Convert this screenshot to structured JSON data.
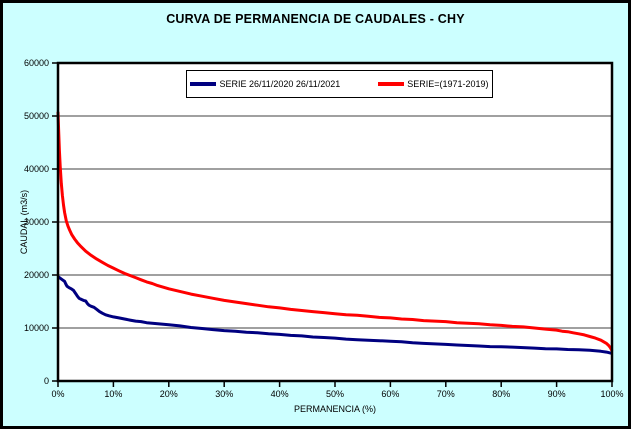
{
  "window": {
    "title": "CURVA DE PERMANENCIA DE CAUDALES - CHY"
  },
  "chart_data": {
    "type": "line",
    "title": "CURVA DE PERMANENCIA DE CAUDALES - CHY",
    "xlabel": "PERMANENCIA (%)",
    "ylabel": "CAUDAL (m3/s)",
    "xlim": [
      0,
      100
    ],
    "ylim": [
      0,
      60000
    ],
    "grid": "horizontal-only",
    "legend_position": "top-center-inside",
    "x_tick_values": [
      0,
      10,
      20,
      30,
      40,
      50,
      60,
      70,
      80,
      90,
      100
    ],
    "x_tick_labels": [
      "0%",
      "10%",
      "20%",
      "30%",
      "40%",
      "50%",
      "60%",
      "70%",
      "80%",
      "90%",
      "100%"
    ],
    "y_tick_values": [
      0,
      10000,
      20000,
      30000,
      40000,
      50000,
      60000
    ],
    "y_tick_labels": [
      "0",
      "10000",
      "20000",
      "30000",
      "40000",
      "50000",
      "60000"
    ],
    "colors": {
      "background": "#CCFFFF",
      "plot_background": "#FFFFFF",
      "gridline": "#808080",
      "axis": "#000000",
      "series_blue": "#000080",
      "series_red": "#FF0000"
    },
    "series": [
      {
        "id": "serie-26-11-2020-26-11-2021",
        "name": "SERIE 26/11/2020 26/11/2021",
        "color": "#000080",
        "points": [
          [
            0,
            19700
          ],
          [
            0.4,
            19400
          ],
          [
            0.8,
            19100
          ],
          [
            1.2,
            18800
          ],
          [
            1.4,
            18300
          ],
          [
            1.6,
            17900
          ],
          [
            2.0,
            17600
          ],
          [
            2.4,
            17400
          ],
          [
            2.8,
            17100
          ],
          [
            3.2,
            16500
          ],
          [
            3.5,
            16000
          ],
          [
            3.8,
            15600
          ],
          [
            4.2,
            15400
          ],
          [
            4.6,
            15200
          ],
          [
            5.0,
            15100
          ],
          [
            5.3,
            14600
          ],
          [
            5.6,
            14300
          ],
          [
            6.0,
            14100
          ],
          [
            6.5,
            13900
          ],
          [
            7.0,
            13500
          ],
          [
            7.5,
            13100
          ],
          [
            8.0,
            12800
          ],
          [
            8.6,
            12500
          ],
          [
            9.2,
            12300
          ],
          [
            10,
            12100
          ],
          [
            11,
            11900
          ],
          [
            12,
            11700
          ],
          [
            13,
            11500
          ],
          [
            14,
            11300
          ],
          [
            15,
            11200
          ],
          [
            16,
            11000
          ],
          [
            17,
            10900
          ],
          [
            18,
            10800
          ],
          [
            19,
            10700
          ],
          [
            20,
            10600
          ],
          [
            22,
            10400
          ],
          [
            24,
            10100
          ],
          [
            26,
            9900
          ],
          [
            28,
            9700
          ],
          [
            30,
            9500
          ],
          [
            32,
            9400
          ],
          [
            34,
            9200
          ],
          [
            36,
            9100
          ],
          [
            38,
            8900
          ],
          [
            40,
            8800
          ],
          [
            42,
            8600
          ],
          [
            44,
            8500
          ],
          [
            46,
            8300
          ],
          [
            48,
            8200
          ],
          [
            50,
            8100
          ],
          [
            52,
            7900
          ],
          [
            54,
            7800
          ],
          [
            56,
            7700
          ],
          [
            58,
            7600
          ],
          [
            60,
            7500
          ],
          [
            62,
            7400
          ],
          [
            64,
            7200
          ],
          [
            66,
            7100
          ],
          [
            68,
            7000
          ],
          [
            70,
            6900
          ],
          [
            72,
            6800
          ],
          [
            74,
            6700
          ],
          [
            76,
            6600
          ],
          [
            78,
            6500
          ],
          [
            80,
            6450
          ],
          [
            82,
            6400
          ],
          [
            84,
            6300
          ],
          [
            86,
            6200
          ],
          [
            88,
            6100
          ],
          [
            90,
            6050
          ],
          [
            92,
            5950
          ],
          [
            94,
            5900
          ],
          [
            96,
            5800
          ],
          [
            97,
            5700
          ],
          [
            98,
            5600
          ],
          [
            99,
            5450
          ],
          [
            100,
            5200
          ]
        ]
      },
      {
        "id": "serie-1971-2019",
        "name": "SERIE=(1971-2019)",
        "color": "#FF0000",
        "points": [
          [
            0,
            50800
          ],
          [
            0.1,
            47500
          ],
          [
            0.25,
            43500
          ],
          [
            0.4,
            40500
          ],
          [
            0.6,
            37300
          ],
          [
            0.8,
            35000
          ],
          [
            1.0,
            33200
          ],
          [
            1.2,
            31800
          ],
          [
            1.5,
            30200
          ],
          [
            1.8,
            29200
          ],
          [
            2.1,
            28500
          ],
          [
            2.5,
            27600
          ],
          [
            3.0,
            26800
          ],
          [
            3.5,
            26100
          ],
          [
            4.0,
            25500
          ],
          [
            5.0,
            24500
          ],
          [
            6.0,
            23700
          ],
          [
            7.0,
            23000
          ],
          [
            8.0,
            22400
          ],
          [
            9.0,
            21800
          ],
          [
            10,
            21300
          ],
          [
            11,
            20800
          ],
          [
            12,
            20300
          ],
          [
            13,
            19900
          ],
          [
            14,
            19500
          ],
          [
            15,
            19100
          ],
          [
            16,
            18700
          ],
          [
            17,
            18400
          ],
          [
            18,
            18000
          ],
          [
            19,
            17700
          ],
          [
            20,
            17400
          ],
          [
            22,
            16900
          ],
          [
            24,
            16400
          ],
          [
            26,
            16000
          ],
          [
            28,
            15600
          ],
          [
            30,
            15200
          ],
          [
            32,
            14900
          ],
          [
            34,
            14600
          ],
          [
            36,
            14300
          ],
          [
            38,
            14000
          ],
          [
            40,
            13800
          ],
          [
            42,
            13500
          ],
          [
            44,
            13300
          ],
          [
            46,
            13100
          ],
          [
            48,
            12900
          ],
          [
            50,
            12700
          ],
          [
            52,
            12500
          ],
          [
            54,
            12400
          ],
          [
            56,
            12200
          ],
          [
            58,
            12000
          ],
          [
            60,
            11900
          ],
          [
            62,
            11700
          ],
          [
            64,
            11600
          ],
          [
            66,
            11400
          ],
          [
            68,
            11300
          ],
          [
            70,
            11200
          ],
          [
            72,
            11000
          ],
          [
            74,
            10900
          ],
          [
            76,
            10800
          ],
          [
            78,
            10600
          ],
          [
            80,
            10500
          ],
          [
            82,
            10300
          ],
          [
            84,
            10200
          ],
          [
            86,
            10000
          ],
          [
            88,
            9800
          ],
          [
            90,
            9600
          ],
          [
            91,
            9400
          ],
          [
            92,
            9300
          ],
          [
            93,
            9100
          ],
          [
            94,
            8900
          ],
          [
            95,
            8700
          ],
          [
            96,
            8400
          ],
          [
            97,
            8100
          ],
          [
            98,
            7700
          ],
          [
            98.5,
            7400
          ],
          [
            99,
            7100
          ],
          [
            99.4,
            6700
          ],
          [
            99.7,
            6300
          ],
          [
            100,
            5700
          ]
        ]
      }
    ]
  }
}
